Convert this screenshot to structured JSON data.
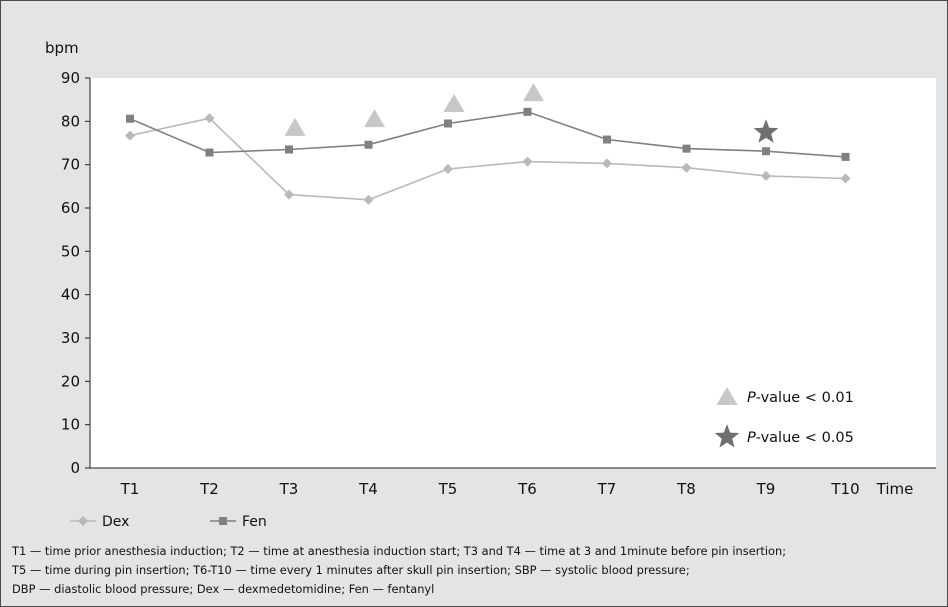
{
  "chart_data": {
    "type": "line",
    "categories": [
      "T1",
      "T2",
      "T3",
      "T4",
      "T5",
      "T6",
      "T7",
      "T8",
      "T9",
      "T10"
    ],
    "xlabel": "Time",
    "ylabel": "bpm",
    "ylim": [
      0,
      90
    ],
    "yticks": [
      0,
      10,
      20,
      30,
      40,
      50,
      60,
      70,
      80,
      90
    ],
    "grid": false,
    "legend_position": "bottom-left",
    "series": [
      {
        "name": "Dex",
        "color": "#b9b9bb",
        "marker": "diamond",
        "values": [
          76.7,
          80.7,
          63.1,
          61.9,
          69.0,
          70.7,
          70.3,
          69.3,
          67.4,
          66.8
        ]
      },
      {
        "name": "Fen",
        "color": "#808082",
        "marker": "square",
        "values": [
          80.6,
          72.8,
          73.5,
          74.6,
          79.5,
          82.2,
          75.8,
          73.7,
          73.1,
          71.8
        ]
      }
    ],
    "significance_markers": [
      {
        "category": "T3",
        "y": 78.5,
        "symbol": "triangle"
      },
      {
        "category": "T4",
        "y": 80.5,
        "symbol": "triangle"
      },
      {
        "category": "T5",
        "y": 84.0,
        "symbol": "triangle"
      },
      {
        "category": "T6",
        "y": 86.5,
        "symbol": "triangle"
      },
      {
        "category": "T9",
        "y": 77.5,
        "symbol": "star"
      }
    ],
    "significance_legend": [
      {
        "symbol": "triangle",
        "italic": "P",
        "text": "-value < 0.01",
        "color": "#c6c7c9"
      },
      {
        "symbol": "star",
        "italic": "P",
        "text": "-value < 0.05",
        "color": "#6f6f71"
      }
    ]
  },
  "footnote": [
    "T1 — time prior anesthesia induction; T2 — time at anesthesia induction start; T3 and T4 — time at 3 and 1minute before pin insertion;",
    "T5 — time during pin insertion; T6-T10 — time every 1 minutes after skull pin insertion; SBP — systolic blood pressure;",
    "DBP — diastolic blood pressure; Dex — dexmedetomidine; Fen — fentanyl"
  ]
}
